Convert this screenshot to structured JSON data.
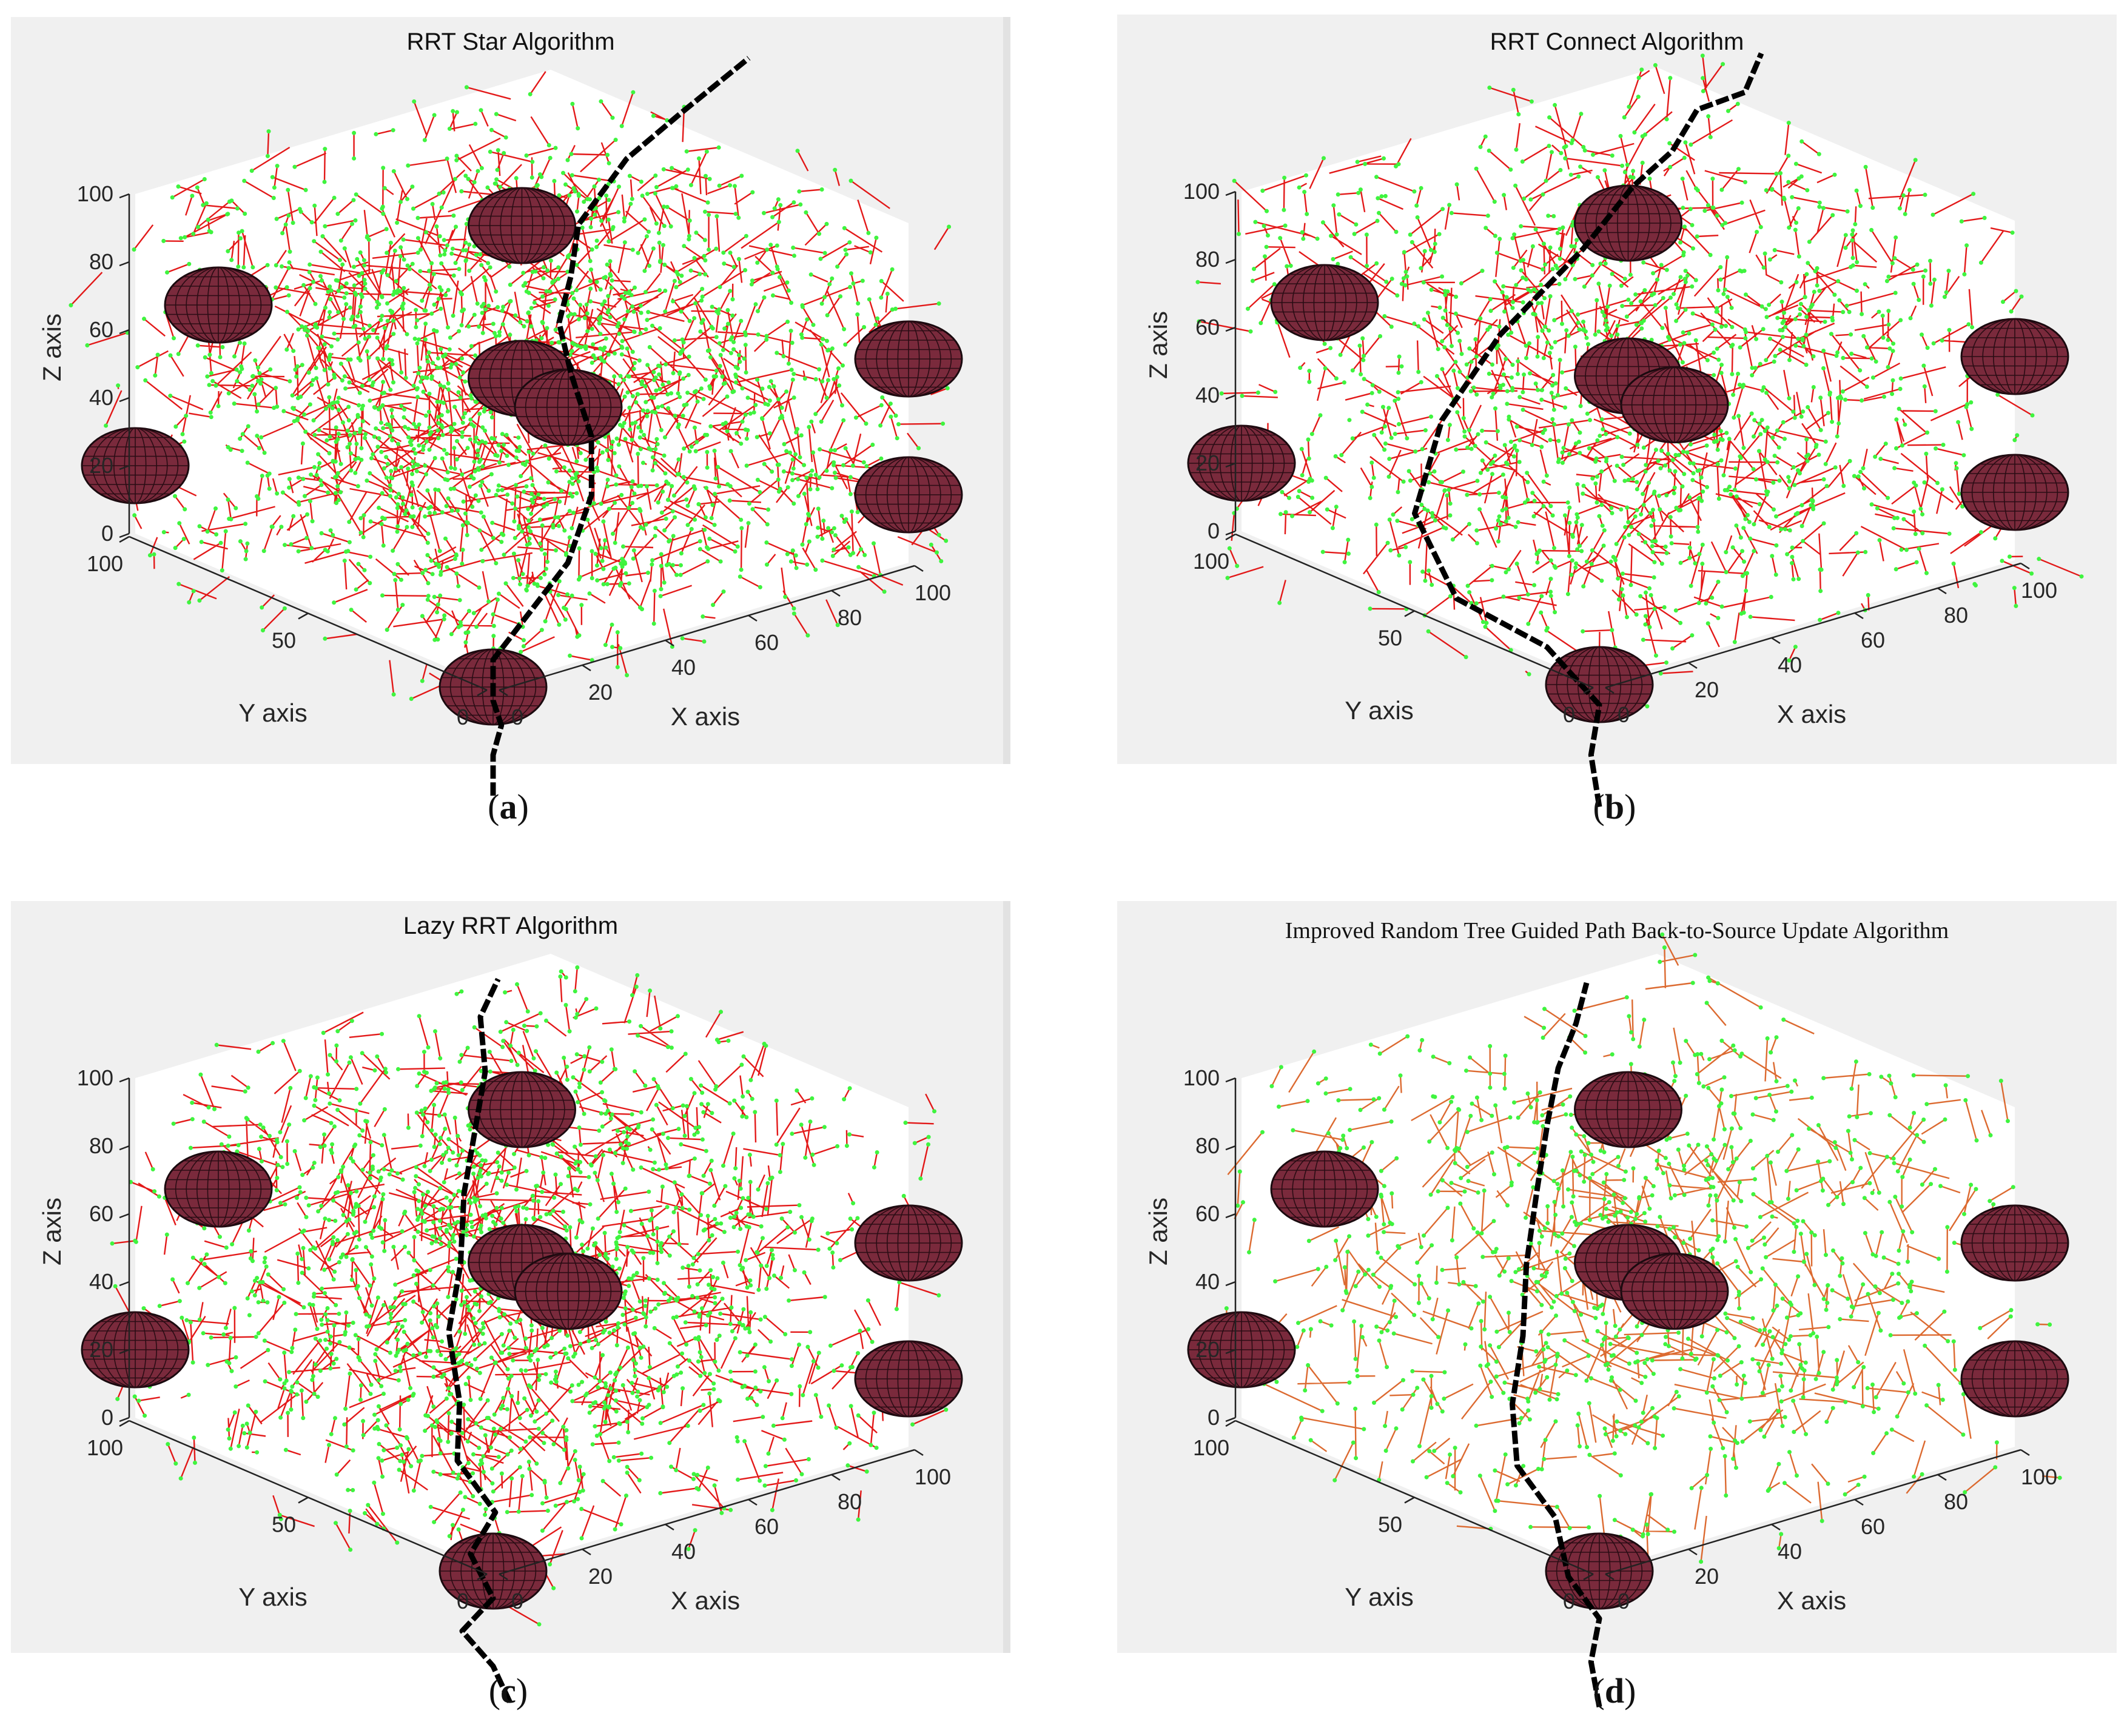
{
  "chart_data": [
    {
      "type": "3d-path-planning",
      "title": "RRT Star Algorithm",
      "subcaption": "a",
      "xlabel": "X axis",
      "ylabel": "Y axis",
      "zlabel": "Z axis",
      "xlim": [
        0,
        100
      ],
      "ylim": [
        0,
        100
      ],
      "zlim": [
        0,
        100
      ],
      "xticks": [
        0,
        20,
        40,
        60,
        80,
        100
      ],
      "yticks": [
        0,
        50,
        100
      ],
      "zticks": [
        0,
        20,
        40,
        60,
        80,
        100
      ],
      "tree_density": "high",
      "edge_color": "#e00000",
      "node_color": "#3ff43f",
      "obstacles": [
        {
          "center": [
            20,
            100,
            60
          ],
          "radius": [
            10,
            10,
            7
          ]
        },
        {
          "center": [
            50,
            50,
            95
          ],
          "radius": [
            10,
            10,
            7
          ]
        },
        {
          "center": [
            100,
            0,
            60
          ],
          "radius": [
            10,
            10,
            7
          ]
        },
        {
          "center": [
            50,
            50,
            50
          ],
          "radius": [
            10,
            10,
            7
          ]
        },
        {
          "center": [
            56,
            44,
            42
          ],
          "radius": [
            10,
            10,
            7
          ]
        },
        {
          "center": [
            0,
            100,
            20
          ],
          "radius": [
            10,
            10,
            7
          ]
        },
        {
          "center": [
            100,
            0,
            20
          ],
          "radius": [
            10,
            10,
            7
          ]
        },
        {
          "center": [
            0,
            0,
            0
          ],
          "radius": [
            10,
            10,
            7
          ]
        }
      ],
      "path": [
        [
          0,
          0,
          -32
        ],
        [
          0,
          0,
          -20
        ],
        [
          2,
          0,
          -12
        ],
        [
          0,
          0,
          -4
        ],
        [
          0,
          0,
          8
        ],
        [
          18,
          0,
          30
        ],
        [
          28,
          5,
          44
        ],
        [
          34,
          12,
          56
        ],
        [
          36,
          20,
          70
        ],
        [
          40,
          28,
          80
        ],
        [
          48,
          34,
          88
        ],
        [
          55,
          40,
          98
        ],
        [
          70,
          44,
          110
        ],
        [
          80,
          40,
          122
        ],
        [
          96,
          40,
          132
        ]
      ]
    },
    {
      "type": "3d-path-planning",
      "title": "RRT Connect Algorithm",
      "subcaption": "b",
      "xlabel": "X axis",
      "ylabel": "Y axis",
      "zlabel": "Z axis",
      "xlim": [
        0,
        100
      ],
      "ylim": [
        0,
        100
      ],
      "zlim": [
        0,
        100
      ],
      "xticks": [
        0,
        20,
        40,
        60,
        80,
        100
      ],
      "yticks": [
        0,
        50,
        100
      ],
      "zticks": [
        0,
        20,
        40,
        60,
        80,
        100
      ],
      "tree_density": "medium",
      "edge_color": "#e00000",
      "node_color": "#3ff43f",
      "obstacles": [
        {
          "center": [
            20,
            100,
            60
          ],
          "radius": [
            10,
            10,
            7
          ]
        },
        {
          "center": [
            50,
            50,
            95
          ],
          "radius": [
            10,
            10,
            7
          ]
        },
        {
          "center": [
            100,
            0,
            60
          ],
          "radius": [
            10,
            10,
            7
          ]
        },
        {
          "center": [
            50,
            50,
            50
          ],
          "radius": [
            10,
            10,
            7
          ]
        },
        {
          "center": [
            56,
            44,
            42
          ],
          "radius": [
            10,
            10,
            7
          ]
        },
        {
          "center": [
            0,
            100,
            20
          ],
          "radius": [
            10,
            10,
            7
          ]
        },
        {
          "center": [
            100,
            0,
            20
          ],
          "radius": [
            10,
            10,
            7
          ]
        },
        {
          "center": [
            0,
            0,
            0
          ],
          "radius": [
            10,
            10,
            7
          ]
        }
      ],
      "path": [
        [
          0,
          0,
          -36
        ],
        [
          -2,
          0,
          -20
        ],
        [
          0,
          0,
          -6
        ],
        [
          -4,
          10,
          8
        ],
        [
          -12,
          26,
          18
        ],
        [
          -10,
          40,
          36
        ],
        [
          0,
          44,
          58
        ],
        [
          14,
          44,
          78
        ],
        [
          34,
          44,
          96
        ],
        [
          46,
          44,
          110
        ],
        [
          52,
          40,
          120
        ],
        [
          58,
          40,
          130
        ],
        [
          66,
          36,
          134
        ],
        [
          70,
          36,
          144
        ]
      ]
    },
    {
      "type": "3d-path-planning",
      "title": "Lazy RRT Algorithm",
      "subcaption": "c",
      "xlabel": "X axis",
      "ylabel": "Y axis",
      "zlabel": "Z axis",
      "xlim": [
        0,
        100
      ],
      "ylim": [
        0,
        100
      ],
      "zlim": [
        0,
        100
      ],
      "xticks": [
        0,
        20,
        40,
        60,
        80,
        100
      ],
      "yticks": [
        0,
        50,
        100
      ],
      "zticks": [
        0,
        20,
        40,
        60,
        80,
        100
      ],
      "tree_density": "medium-high",
      "edge_color": "#e00000",
      "node_color": "#3ff43f",
      "obstacles": [
        {
          "center": [
            20,
            100,
            60
          ],
          "radius": [
            10,
            10,
            7
          ]
        },
        {
          "center": [
            50,
            50,
            95
          ],
          "radius": [
            10,
            10,
            7
          ]
        },
        {
          "center": [
            100,
            0,
            60
          ],
          "radius": [
            10,
            10,
            7
          ]
        },
        {
          "center": [
            50,
            50,
            50
          ],
          "radius": [
            10,
            10,
            7
          ]
        },
        {
          "center": [
            56,
            44,
            42
          ],
          "radius": [
            10,
            10,
            7
          ]
        },
        {
          "center": [
            0,
            100,
            20
          ],
          "radius": [
            10,
            10,
            7
          ]
        },
        {
          "center": [
            100,
            0,
            20
          ],
          "radius": [
            10,
            10,
            7
          ]
        },
        {
          "center": [
            0,
            0,
            0
          ],
          "radius": [
            10,
            10,
            7
          ]
        }
      ],
      "path": [
        [
          4,
          0,
          -40
        ],
        [
          0,
          0,
          -28
        ],
        [
          -4,
          4,
          -18
        ],
        [
          0,
          0,
          -8
        ],
        [
          -2,
          4,
          4
        ],
        [
          4,
          4,
          14
        ],
        [
          0,
          10,
          28
        ],
        [
          4,
          14,
          42
        ],
        [
          10,
          24,
          56
        ],
        [
          18,
          30,
          70
        ],
        [
          24,
          36,
          86
        ],
        [
          30,
          40,
          100
        ],
        [
          36,
          44,
          114
        ],
        [
          40,
          50,
          126
        ],
        [
          46,
          52,
          134
        ]
      ]
    },
    {
      "type": "3d-path-planning",
      "title": "Improved Random Tree Guided Path Back-to-Source Update Algorithm",
      "subcaption": "d",
      "xlabel": "X axis",
      "ylabel": "Y axis",
      "zlabel": "Z axis",
      "xlim": [
        0,
        100
      ],
      "ylim": [
        0,
        100
      ],
      "zlim": [
        0,
        100
      ],
      "xticks": [
        0,
        20,
        40,
        60,
        80,
        100
      ],
      "yticks": [
        0,
        50,
        100
      ],
      "zticks": [
        0,
        20,
        40,
        60,
        80,
        100
      ],
      "tree_density": "low",
      "edge_color": "#d85a1a",
      "node_color": "#3ff43f",
      "obstacles": [
        {
          "center": [
            20,
            100,
            60
          ],
          "radius": [
            10,
            10,
            7
          ]
        },
        {
          "center": [
            50,
            50,
            95
          ],
          "radius": [
            10,
            10,
            7
          ]
        },
        {
          "center": [
            100,
            0,
            60
          ],
          "radius": [
            10,
            10,
            7
          ]
        },
        {
          "center": [
            50,
            50,
            50
          ],
          "radius": [
            10,
            10,
            7
          ]
        },
        {
          "center": [
            56,
            44,
            42
          ],
          "radius": [
            10,
            10,
            7
          ]
        },
        {
          "center": [
            0,
            100,
            20
          ],
          "radius": [
            10,
            10,
            7
          ]
        },
        {
          "center": [
            100,
            0,
            20
          ],
          "radius": [
            10,
            10,
            7
          ]
        },
        {
          "center": [
            0,
            0,
            0
          ],
          "radius": [
            10,
            10,
            7
          ]
        }
      ],
      "path": [
        [
          0,
          0,
          -40
        ],
        [
          -2,
          0,
          -26
        ],
        [
          0,
          0,
          -14
        ],
        [
          -4,
          4,
          -2
        ],
        [
          -2,
          10,
          12
        ],
        [
          -6,
          16,
          26
        ],
        [
          -2,
          22,
          40
        ],
        [
          4,
          26,
          56
        ],
        [
          10,
          32,
          72
        ],
        [
          16,
          36,
          90
        ],
        [
          22,
          40,
          106
        ],
        [
          28,
          44,
          118
        ],
        [
          34,
          46,
          128
        ],
        [
          40,
          50,
          136
        ]
      ]
    }
  ]
}
